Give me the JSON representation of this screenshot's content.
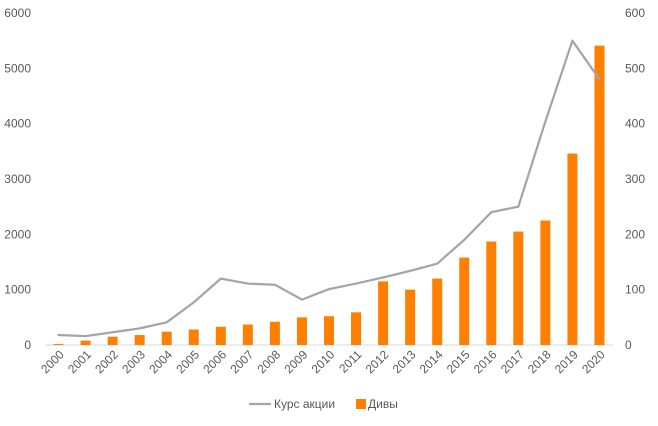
{
  "chart_data": {
    "type": "bar",
    "title": "",
    "xlabel": "",
    "ylabel": "",
    "categories": [
      "2000",
      "2001",
      "2002",
      "2003",
      "2004",
      "2005",
      "2006",
      "2007",
      "2008",
      "2009",
      "2010",
      "2011",
      "2012",
      "2013",
      "2014",
      "2015",
      "2016",
      "2017",
      "2018",
      "2019",
      "2020"
    ],
    "ylim_left": [
      0,
      6000
    ],
    "ylim_right": [
      0,
      600
    ],
    "yticks_left": [
      0,
      1000,
      2000,
      3000,
      4000,
      5000,
      6000
    ],
    "yticks_right": [
      0,
      100,
      200,
      300,
      400,
      500,
      600
    ],
    "grid": false,
    "legend_position": "bottom",
    "series": [
      {
        "name": "Курс акции",
        "type": "line",
        "axis": "left",
        "color": "#a5a5a5",
        "values": [
          180,
          160,
          230,
          300,
          410,
          770,
          1200,
          1110,
          1090,
          820,
          1010,
          1110,
          1220,
          1340,
          1470,
          1900,
          2400,
          2500,
          4040,
          5500,
          4800
        ]
      },
      {
        "name": "Дивы",
        "type": "bar",
        "axis": "right",
        "color": "#ff7f00",
        "values": [
          2,
          8,
          15,
          18,
          24,
          28,
          33,
          37,
          42,
          50,
          52,
          59,
          115,
          100,
          120,
          158,
          187,
          205,
          225,
          346,
          541
        ]
      }
    ]
  }
}
